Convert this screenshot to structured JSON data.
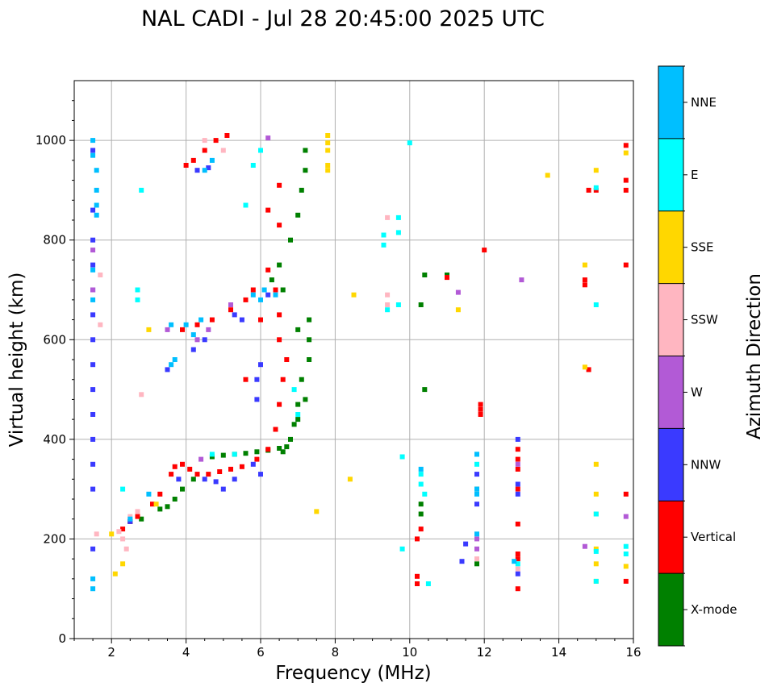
{
  "chart_data": {
    "type": "scatter",
    "title": "NAL CADI - Jul 28 20:45:00 2025 UTC",
    "xlabel": "Frequency (MHz)",
    "ylabel": "Virtual height (km)",
    "xlim": [
      1,
      16
    ],
    "ylim": [
      0,
      1120
    ],
    "xticks": [
      2,
      4,
      6,
      8,
      10,
      12,
      14,
      16
    ],
    "yticks": [
      0,
      200,
      400,
      600,
      800,
      1000
    ],
    "grid": true,
    "colorbar": {
      "label": "Azimuth Direction",
      "categories": [
        "X-mode",
        "Vertical",
        "NNW",
        "W",
        "SSW",
        "SSE",
        "E",
        "NNE"
      ],
      "colors": {
        "X-mode": "#008000",
        "Vertical": "#ff0000",
        "NNW": "#3a3aff",
        "W": "#b25ad6",
        "SSW": "#ffb6c1",
        "SSE": "#ffd700",
        "E": "#00ffff",
        "NNE": "#00bfff"
      }
    },
    "series": [
      {
        "name": "X-mode",
        "points": [
          [
            2.5,
            235
          ],
          [
            2.8,
            240
          ],
          [
            3.3,
            260
          ],
          [
            3.5,
            265
          ],
          [
            3.7,
            280
          ],
          [
            3.9,
            300
          ],
          [
            4.2,
            320
          ],
          [
            4.7,
            365
          ],
          [
            5.0,
            368
          ],
          [
            5.3,
            370
          ],
          [
            5.6,
            372
          ],
          [
            5.9,
            375
          ],
          [
            6.2,
            378
          ],
          [
            6.5,
            382
          ],
          [
            6.8,
            400
          ],
          [
            7.0,
            440
          ],
          [
            7.2,
            480
          ],
          [
            7.1,
            520
          ],
          [
            7.3,
            560
          ],
          [
            7.0,
            620
          ],
          [
            6.6,
            700
          ],
          [
            6.3,
            720
          ],
          [
            6.5,
            750
          ],
          [
            6.8,
            800
          ],
          [
            7.0,
            850
          ],
          [
            7.1,
            900
          ],
          [
            7.2,
            940
          ],
          [
            7.2,
            980
          ],
          [
            10.3,
            250
          ],
          [
            10.3,
            270
          ],
          [
            11.8,
            150
          ],
          [
            11.8,
            300
          ],
          [
            10.4,
            500
          ],
          [
            10.3,
            670
          ],
          [
            10.4,
            730
          ],
          [
            11.0,
            730
          ],
          [
            6.6,
            375
          ],
          [
            6.7,
            385
          ],
          [
            7.3,
            600
          ],
          [
            7.3,
            640
          ],
          [
            7.0,
            470
          ],
          [
            6.9,
            430
          ]
        ]
      },
      {
        "name": "Vertical",
        "points": [
          [
            2.3,
            220
          ],
          [
            2.5,
            235
          ],
          [
            2.7,
            245
          ],
          [
            3.1,
            270
          ],
          [
            3.3,
            290
          ],
          [
            3.6,
            330
          ],
          [
            3.7,
            345
          ],
          [
            3.9,
            350
          ],
          [
            4.1,
            340
          ],
          [
            4.3,
            330
          ],
          [
            4.6,
            330
          ],
          [
            4.9,
            335
          ],
          [
            5.2,
            340
          ],
          [
            5.5,
            345
          ],
          [
            5.9,
            360
          ],
          [
            6.2,
            380
          ],
          [
            6.4,
            420
          ],
          [
            6.5,
            470
          ],
          [
            6.6,
            520
          ],
          [
            6.7,
            560
          ],
          [
            6.5,
            600
          ],
          [
            6.5,
            650
          ],
          [
            6.4,
            700
          ],
          [
            6.2,
            740
          ],
          [
            5.8,
            700
          ],
          [
            5.6,
            680
          ],
          [
            5.2,
            660
          ],
          [
            4.7,
            640
          ],
          [
            4.3,
            630
          ],
          [
            3.9,
            620
          ],
          [
            4.0,
            950
          ],
          [
            4.2,
            960
          ],
          [
            4.5,
            980
          ],
          [
            4.8,
            1000
          ],
          [
            5.1,
            1010
          ],
          [
            6.5,
            910
          ],
          [
            6.2,
            860
          ],
          [
            6.5,
            830
          ],
          [
            10.2,
            110
          ],
          [
            10.2,
            125
          ],
          [
            10.2,
            200
          ],
          [
            10.3,
            220
          ],
          [
            11.9,
            470
          ],
          [
            11.9,
            460
          ],
          [
            11.9,
            450
          ],
          [
            12.9,
            100
          ],
          [
            12.9,
            160
          ],
          [
            12.9,
            170
          ],
          [
            12.9,
            230
          ],
          [
            12.9,
            300
          ],
          [
            12.9,
            340
          ],
          [
            12.9,
            360
          ],
          [
            12.9,
            380
          ],
          [
            14.7,
            710
          ],
          [
            14.7,
            720
          ],
          [
            14.8,
            900
          ],
          [
            15.0,
            900
          ],
          [
            14.8,
            540
          ],
          [
            15.8,
            990
          ],
          [
            15.8,
            920
          ],
          [
            15.8,
            900
          ],
          [
            15.8,
            750
          ],
          [
            15.8,
            290
          ],
          [
            15.8,
            115
          ],
          [
            12.0,
            780
          ],
          [
            11.0,
            725
          ],
          [
            5.6,
            520
          ],
          [
            6.0,
            640
          ]
        ]
      },
      {
        "name": "NNW",
        "points": [
          [
            1.5,
            180
          ],
          [
            1.5,
            300
          ],
          [
            1.5,
            350
          ],
          [
            1.5,
            400
          ],
          [
            1.5,
            450
          ],
          [
            1.5,
            500
          ],
          [
            1.5,
            550
          ],
          [
            1.5,
            600
          ],
          [
            1.5,
            650
          ],
          [
            1.5,
            700
          ],
          [
            1.5,
            750
          ],
          [
            1.5,
            800
          ],
          [
            1.5,
            860
          ],
          [
            1.5,
            980
          ],
          [
            2.5,
            235
          ],
          [
            3.8,
            320
          ],
          [
            4.5,
            320
          ],
          [
            4.8,
            315
          ],
          [
            5.0,
            300
          ],
          [
            5.3,
            320
          ],
          [
            5.8,
            350
          ],
          [
            6.0,
            330
          ],
          [
            5.9,
            480
          ],
          [
            5.9,
            520
          ],
          [
            6.0,
            550
          ],
          [
            5.5,
            640
          ],
          [
            5.3,
            650
          ],
          [
            4.5,
            600
          ],
          [
            4.2,
            580
          ],
          [
            4.3,
            940
          ],
          [
            4.6,
            945
          ],
          [
            12.9,
            130
          ],
          [
            12.9,
            290
          ],
          [
            12.9,
            310
          ],
          [
            12.9,
            400
          ],
          [
            11.8,
            270
          ],
          [
            11.8,
            330
          ],
          [
            11.5,
            190
          ],
          [
            11.4,
            155
          ],
          [
            6.2,
            690
          ],
          [
            3.5,
            540
          ]
        ]
      },
      {
        "name": "W",
        "points": [
          [
            1.5,
            700
          ],
          [
            1.5,
            780
          ],
          [
            3.5,
            620
          ],
          [
            4.6,
            620
          ],
          [
            4.3,
            600
          ],
          [
            5.2,
            670
          ],
          [
            6.2,
            1005
          ],
          [
            12.9,
            350
          ],
          [
            13.0,
            720
          ],
          [
            11.8,
            200
          ],
          [
            11.8,
            180
          ],
          [
            14.7,
            185
          ],
          [
            15.8,
            245
          ],
          [
            11.3,
            695
          ],
          [
            4.4,
            360
          ]
        ]
      },
      {
        "name": "SSW",
        "points": [
          [
            1.7,
            730
          ],
          [
            1.7,
            630
          ],
          [
            1.6,
            210
          ],
          [
            2.2,
            215
          ],
          [
            2.3,
            200
          ],
          [
            2.4,
            180
          ],
          [
            2.5,
            245
          ],
          [
            2.7,
            255
          ],
          [
            4.5,
            1000
          ],
          [
            5.0,
            980
          ],
          [
            9.4,
            845
          ],
          [
            9.4,
            690
          ],
          [
            9.4,
            670
          ],
          [
            11.8,
            160
          ],
          [
            12.9,
            140
          ],
          [
            2.8,
            490
          ]
        ]
      },
      {
        "name": "SSE",
        "points": [
          [
            7.8,
            1010
          ],
          [
            7.8,
            995
          ],
          [
            7.8,
            980
          ],
          [
            7.8,
            950
          ],
          [
            7.8,
            940
          ],
          [
            8.5,
            690
          ],
          [
            8.4,
            320
          ],
          [
            7.5,
            255
          ],
          [
            2.0,
            210
          ],
          [
            2.1,
            130
          ],
          [
            2.3,
            150
          ],
          [
            3.0,
            620
          ],
          [
            11.3,
            660
          ],
          [
            13.7,
            930
          ],
          [
            14.7,
            750
          ],
          [
            14.7,
            545
          ],
          [
            15.0,
            940
          ],
          [
            15.0,
            350
          ],
          [
            15.0,
            290
          ],
          [
            15.0,
            250
          ],
          [
            15.0,
            180
          ],
          [
            15.0,
            150
          ],
          [
            15.0,
            115
          ],
          [
            15.8,
            975
          ],
          [
            15.8,
            145
          ],
          [
            3.2,
            270
          ]
        ]
      },
      {
        "name": "E",
        "points": [
          [
            9.3,
            810
          ],
          [
            9.3,
            790
          ],
          [
            9.7,
            845
          ],
          [
            9.7,
            815
          ],
          [
            9.4,
            660
          ],
          [
            9.7,
            670
          ],
          [
            10.0,
            995
          ],
          [
            9.8,
            365
          ],
          [
            9.8,
            180
          ],
          [
            10.3,
            330
          ],
          [
            10.3,
            310
          ],
          [
            10.4,
            290
          ],
          [
            10.5,
            110
          ],
          [
            11.8,
            370
          ],
          [
            11.8,
            350
          ],
          [
            12.9,
            150
          ],
          [
            15.0,
            905
          ],
          [
            15.0,
            670
          ],
          [
            15.0,
            250
          ],
          [
            15.0,
            175
          ],
          [
            15.0,
            115
          ],
          [
            15.8,
            185
          ],
          [
            15.8,
            170
          ],
          [
            2.7,
            700
          ],
          [
            2.7,
            680
          ],
          [
            2.8,
            900
          ],
          [
            5.6,
            870
          ],
          [
            6.9,
            500
          ],
          [
            7.0,
            450
          ],
          [
            4.7,
            370
          ],
          [
            5.3,
            370
          ],
          [
            2.3,
            300
          ],
          [
            6.0,
            980
          ],
          [
            5.8,
            950
          ]
        ]
      },
      {
        "name": "NNE",
        "points": [
          [
            1.5,
            1000
          ],
          [
            1.5,
            970
          ],
          [
            1.6,
            940
          ],
          [
            1.6,
            900
          ],
          [
            1.6,
            870
          ],
          [
            1.6,
            850
          ],
          [
            1.5,
            740
          ],
          [
            1.5,
            680
          ],
          [
            3.7,
            560
          ],
          [
            3.6,
            550
          ],
          [
            4.2,
            610
          ],
          [
            4.4,
            640
          ],
          [
            4.5,
            940
          ],
          [
            4.7,
            960
          ],
          [
            5.8,
            690
          ],
          [
            6.0,
            680
          ],
          [
            6.1,
            700
          ],
          [
            6.4,
            690
          ],
          [
            11.8,
            370
          ],
          [
            11.8,
            300
          ],
          [
            11.8,
            290
          ],
          [
            11.8,
            210
          ],
          [
            12.8,
            155
          ],
          [
            2.5,
            240
          ],
          [
            3.0,
            290
          ],
          [
            3.6,
            630
          ],
          [
            4.0,
            630
          ],
          [
            1.5,
            120
          ],
          [
            1.5,
            100
          ],
          [
            10.3,
            340
          ]
        ]
      }
    ]
  }
}
